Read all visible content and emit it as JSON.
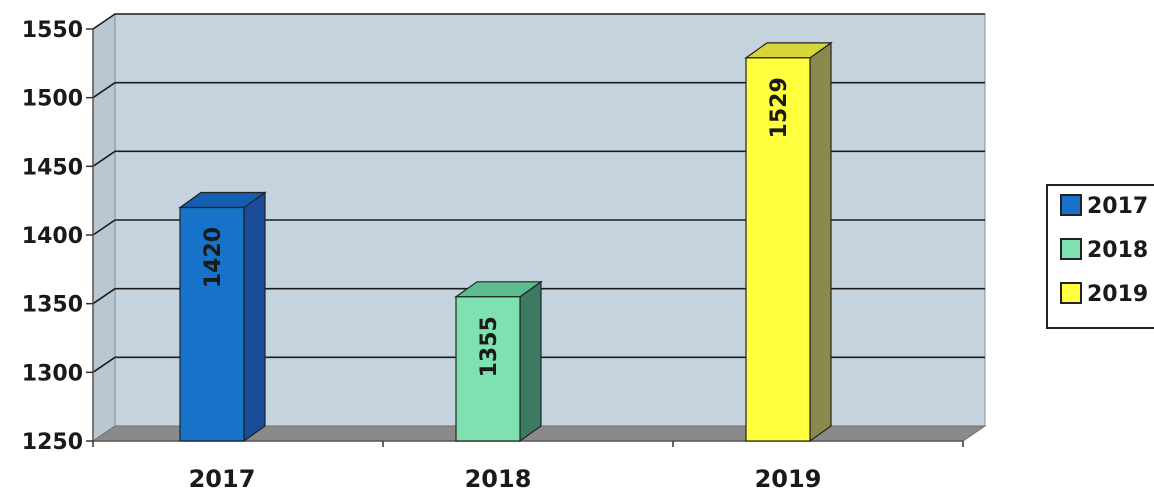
{
  "chart_data": {
    "type": "bar",
    "title": "",
    "xlabel": "",
    "ylabel": "",
    "categories": [
      "2017",
      "2018",
      "2019"
    ],
    "values": [
      1420,
      1355,
      1529
    ],
    "data_labels": [
      "1420",
      "1355",
      "1529"
    ],
    "ylim": [
      1250,
      1550
    ],
    "yticks": [
      1250,
      1300,
      1350,
      1400,
      1450,
      1500,
      1550
    ],
    "grid": true,
    "three_d": true,
    "legend": {
      "placement": "right",
      "entries": [
        "2017",
        "2018",
        "2019"
      ]
    },
    "colors": {
      "plot_background": "#c5d3df",
      "floor": "#8a8a8a",
      "gridline": "#1c1c1c",
      "bars": [
        "#1673c9",
        "#7fe0b0",
        "#ffff3d"
      ],
      "bar_sides": [
        "#1a4d99",
        "#3d7a62",
        "#8b8a4e"
      ],
      "bar_tops": [
        "#155fb0",
        "#5cbc90",
        "#d6d63a"
      ]
    }
  }
}
